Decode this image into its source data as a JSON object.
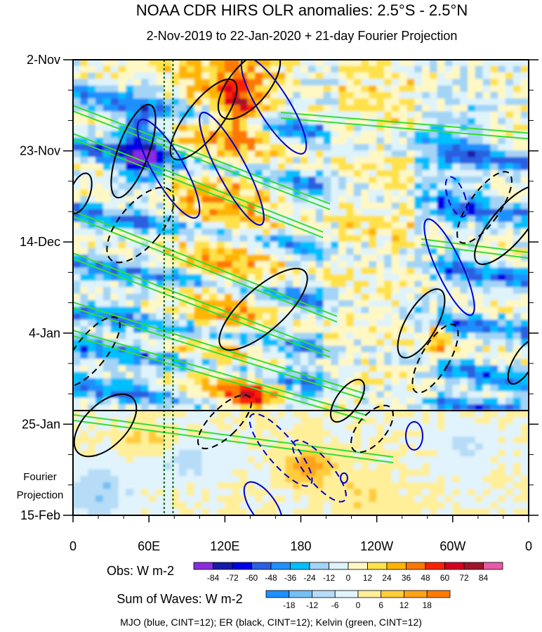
{
  "chart_data": {
    "type": "heatmap",
    "title": "NOAA CDR HIRS OLR anomalies: 2.5°S - 2.5°N",
    "subtitle": "2-Nov-2019 to 22-Jan-2020 + 21-day Fourier Projection",
    "x_tick_labels": [
      "0",
      "60E",
      "120E",
      "180",
      "120W",
      "60W",
      "0"
    ],
    "x_ticks_deg": [
      0,
      60,
      120,
      180,
      240,
      300,
      360
    ],
    "y_tick_labels": [
      "2-Nov",
      "23-Nov",
      "14-Dec",
      "4-Jan",
      "25-Jan",
      "15-Feb"
    ],
    "y_ticks_day": [
      0,
      21,
      42,
      63,
      84,
      105
    ],
    "obs_end_day": 81,
    "projection_label": "Fourier Projection",
    "reference_lines_deg": [
      72,
      79
    ],
    "obs_colorbar": {
      "label": "Obs: W m-2",
      "levels": [
        "-84",
        "-72",
        "-60",
        "-48",
        "-36",
        "-24",
        "-12",
        "0",
        "12",
        "24",
        "36",
        "48",
        "60",
        "72",
        "84"
      ],
      "colors": [
        "#8a2be2",
        "#1a1aa8",
        "#0000e6",
        "#2a5fe0",
        "#1e90ff",
        "#00bfff",
        "#a3d4f5",
        "#dff3fb",
        "#fff8c4",
        "#ffe14a",
        "#ffb400",
        "#ff7800",
        "#ff2200",
        "#d6001e",
        "#a0142a",
        "#e85aa8"
      ]
    },
    "waves_colorbar": {
      "label": "Sum of Waves: W m-2",
      "levels": [
        "-18",
        "-12",
        "-6",
        "0",
        "6",
        "12",
        "18"
      ],
      "colors": [
        "#1e90ff",
        "#73c0f5",
        "#b6dcf7",
        "#e1f3fc",
        "#ffef99",
        "#ffcd3a",
        "#ffa31a",
        "#ff7a00"
      ]
    },
    "footnote": "MJO (blue, CINT=12); ER (black, CINT=12); Kelvin (green, CINT=12)",
    "wave_colors": {
      "mjo": "#0000cc",
      "er": "#000000",
      "kelvin": "#33dd33",
      "ref": "#006600"
    }
  }
}
